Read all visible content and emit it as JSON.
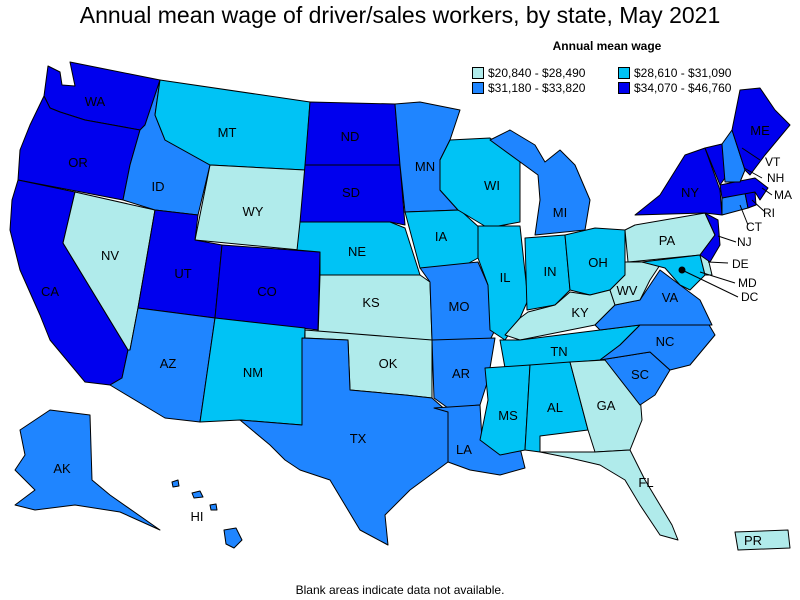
{
  "title": "Annual mean wage of driver/sales workers, by state, May 2021",
  "legend": {
    "title": "Annual mean wage",
    "items": [
      {
        "label": "$20,840 - $28,490",
        "color": "#b0ebeb"
      },
      {
        "label": "$28,610 - $31,090",
        "color": "#00c3f5"
      },
      {
        "label": "$31,180 - $33,820",
        "color": "#1f85ff"
      },
      {
        "label": "$34,070 - $46,760",
        "color": "#0000ee"
      }
    ]
  },
  "footnote": "Blank areas indicate data not available.",
  "states": [
    {
      "code": "WA",
      "tier": 3
    },
    {
      "code": "OR",
      "tier": 3
    },
    {
      "code": "CA",
      "tier": 3
    },
    {
      "code": "NV",
      "tier": 0
    },
    {
      "code": "ID",
      "tier": 2
    },
    {
      "code": "MT",
      "tier": 1
    },
    {
      "code": "WY",
      "tier": 0
    },
    {
      "code": "UT",
      "tier": 3
    },
    {
      "code": "CO",
      "tier": 3
    },
    {
      "code": "AZ",
      "tier": 2
    },
    {
      "code": "NM",
      "tier": 1
    },
    {
      "code": "ND",
      "tier": 3
    },
    {
      "code": "SD",
      "tier": 3
    },
    {
      "code": "NE",
      "tier": 1
    },
    {
      "code": "KS",
      "tier": 0
    },
    {
      "code": "OK",
      "tier": 0
    },
    {
      "code": "TX",
      "tier": 2
    },
    {
      "code": "MN",
      "tier": 2
    },
    {
      "code": "IA",
      "tier": 1
    },
    {
      "code": "MO",
      "tier": 2
    },
    {
      "code": "AR",
      "tier": 2
    },
    {
      "code": "LA",
      "tier": 2
    },
    {
      "code": "WI",
      "tier": 1
    },
    {
      "code": "IL",
      "tier": 1
    },
    {
      "code": "MI",
      "tier": 2
    },
    {
      "code": "IN",
      "tier": 1
    },
    {
      "code": "OH",
      "tier": 1
    },
    {
      "code": "KY",
      "tier": 0
    },
    {
      "code": "TN",
      "tier": 1
    },
    {
      "code": "MS",
      "tier": 1
    },
    {
      "code": "AL",
      "tier": 1
    },
    {
      "code": "GA",
      "tier": 0
    },
    {
      "code": "FL",
      "tier": 0
    },
    {
      "code": "SC",
      "tier": 2
    },
    {
      "code": "NC",
      "tier": 2
    },
    {
      "code": "VA",
      "tier": 2
    },
    {
      "code": "WV",
      "tier": 0
    },
    {
      "code": "PA",
      "tier": 0
    },
    {
      "code": "NY",
      "tier": 3
    },
    {
      "code": "VT",
      "tier": 3
    },
    {
      "code": "NH",
      "tier": 2
    },
    {
      "code": "ME",
      "tier": 3
    },
    {
      "code": "MA",
      "tier": 3
    },
    {
      "code": "RI",
      "tier": 3
    },
    {
      "code": "CT",
      "tier": 2
    },
    {
      "code": "NJ",
      "tier": 3
    },
    {
      "code": "DE",
      "tier": 0
    },
    {
      "code": "MD",
      "tier": 1
    },
    {
      "code": "DC",
      "tier": 3
    },
    {
      "code": "AK",
      "tier": 2
    },
    {
      "code": "HI",
      "tier": 2
    },
    {
      "code": "PR",
      "tier": 0
    }
  ]
}
